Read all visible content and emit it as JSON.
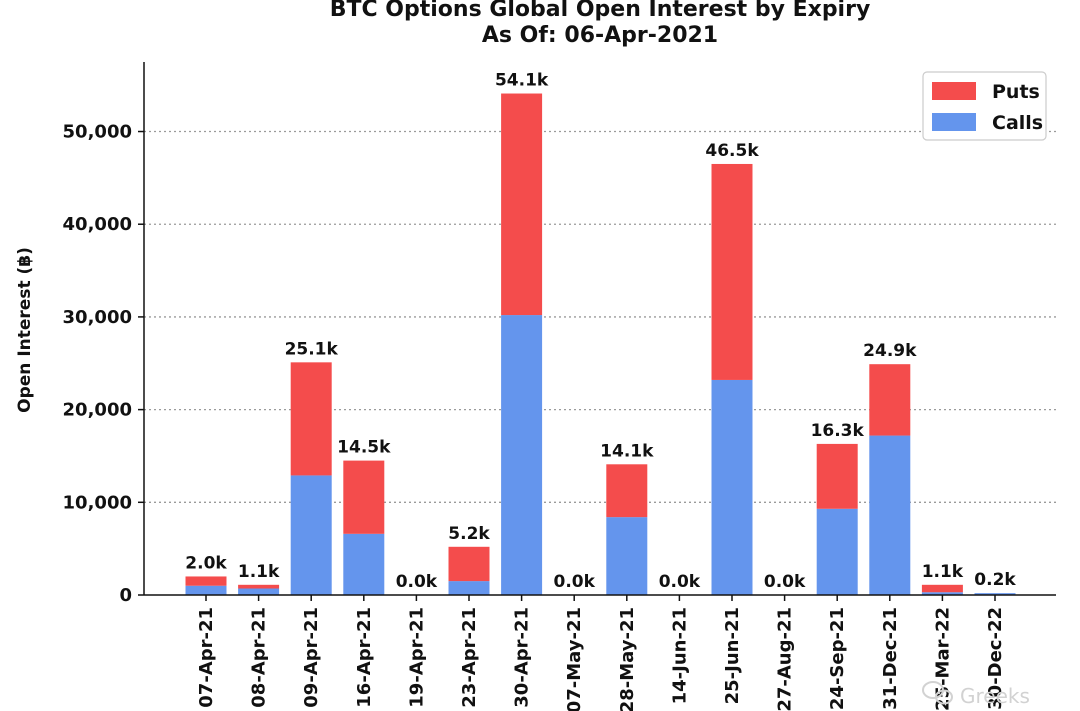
{
  "chart_data": {
    "type": "bar",
    "stacked": true,
    "title": "BTC Options Global Open Interest by Expiry",
    "subtitle": "As Of: 06-Apr-2021",
    "ylabel": "Open Interest (฿)",
    "xlabel": "",
    "ylim": [
      0,
      57500
    ],
    "yticks": [
      0,
      10000,
      20000,
      30000,
      40000,
      50000
    ],
    "ytick_labels": [
      "0",
      "10,000",
      "20,000",
      "30,000",
      "40,000",
      "50,000"
    ],
    "grid": "horizontal-dotted",
    "legend_position": "top-right",
    "categories": [
      "07-Apr-21",
      "08-Apr-21",
      "09-Apr-21",
      "16-Apr-21",
      "19-Apr-21",
      "23-Apr-21",
      "30-Apr-21",
      "07-May-21",
      "28-May-21",
      "14-Jun-21",
      "25-Jun-21",
      "27-Aug-21",
      "24-Sep-21",
      "31-Dec-21",
      "25-Mar-22",
      "30-Dec-22"
    ],
    "series": [
      {
        "name": "Calls",
        "color": "#6495ed",
        "values": [
          1000,
          700,
          12900,
          6600,
          0,
          1500,
          30200,
          0,
          8400,
          0,
          23200,
          0,
          9300,
          17200,
          300,
          200
        ]
      },
      {
        "name": "Puts",
        "color": "#f44c4c",
        "values": [
          1000,
          400,
          12200,
          7900,
          0,
          3700,
          23900,
          0,
          5700,
          0,
          23300,
          0,
          7000,
          7700,
          800,
          0
        ]
      }
    ],
    "totals": [
      2000,
      1100,
      25100,
      14500,
      0,
      5200,
      54100,
      0,
      14100,
      0,
      46500,
      0,
      16300,
      24900,
      1100,
      200
    ],
    "total_labels": [
      "2.0k",
      "1.1k",
      "25.1k",
      "14.5k",
      "0.0k",
      "5.2k",
      "54.1k",
      "0.0k",
      "14.1k",
      "0.0k",
      "46.5k",
      "0.0k",
      "16.3k",
      "24.9k",
      "1.1k",
      "0.2k"
    ]
  },
  "watermark": {
    "text": "Greeks",
    "icon": "wechat-icon"
  }
}
